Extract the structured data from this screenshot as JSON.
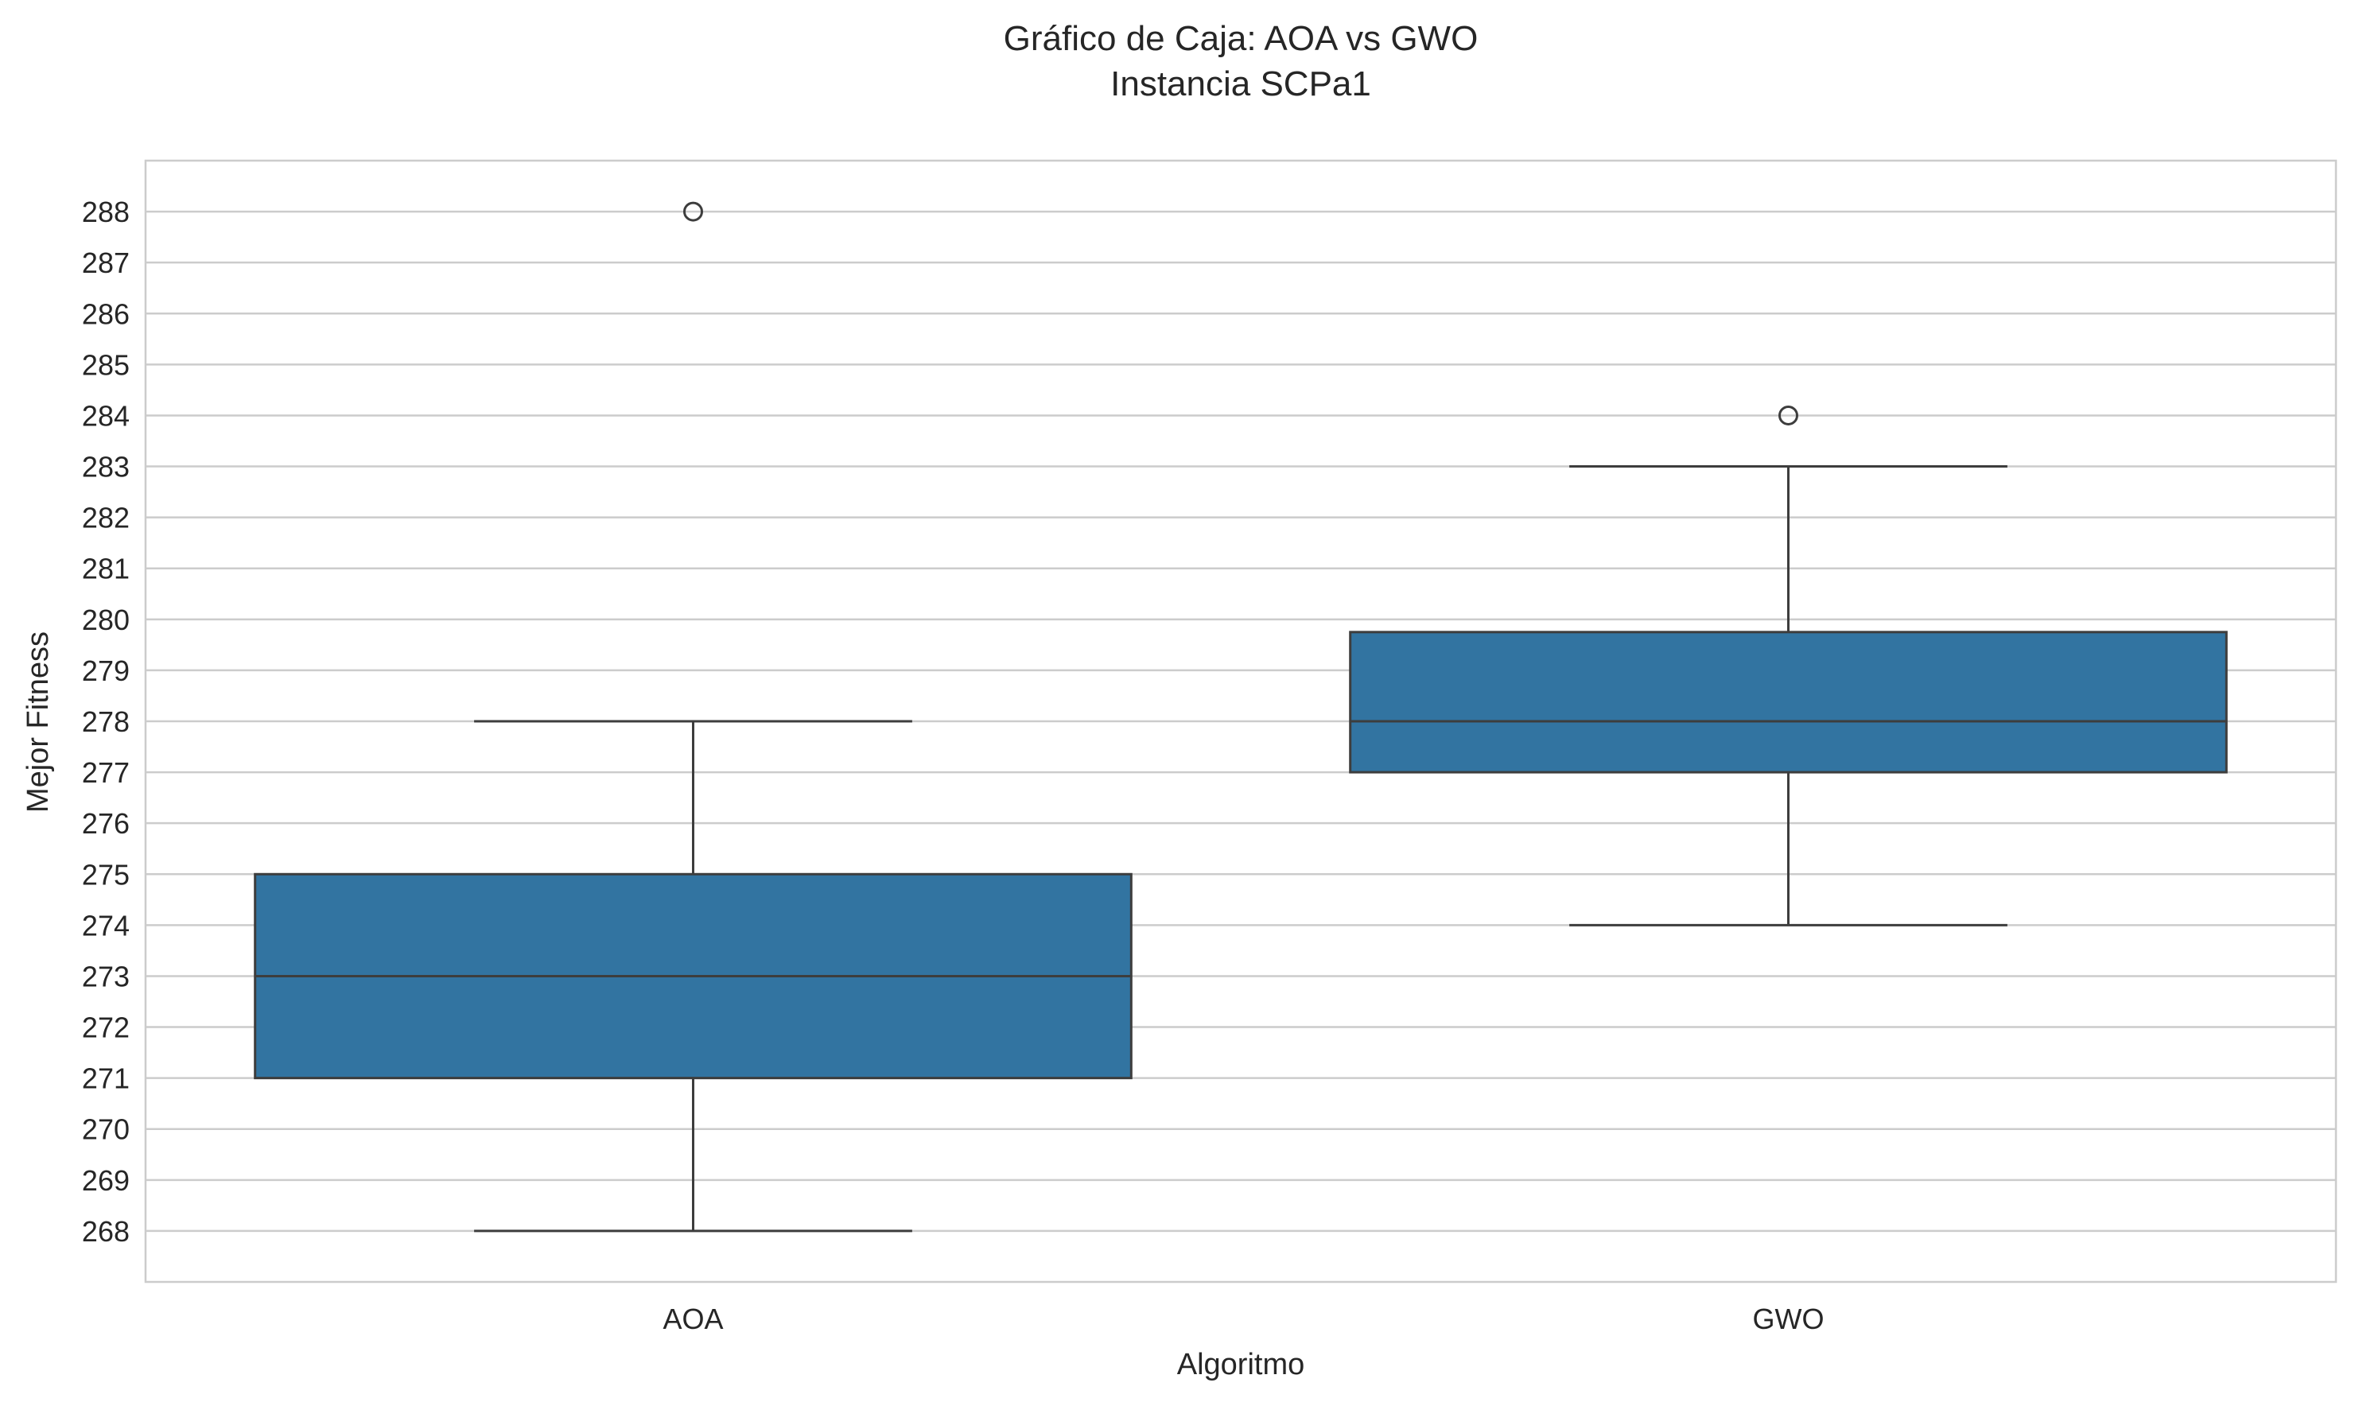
{
  "chart_data": {
    "type": "box",
    "title": "Gráfico de Caja: AOA vs GWO",
    "subtitle": "Instancia SCPa1",
    "xlabel": "Algoritmo",
    "ylabel": "Mejor Fitness",
    "categories": [
      "AOA",
      "GWO"
    ],
    "ylim": [
      267,
      289
    ],
    "yticks": [
      268,
      269,
      270,
      271,
      272,
      273,
      274,
      275,
      276,
      277,
      278,
      279,
      280,
      281,
      282,
      283,
      284,
      285,
      286,
      287,
      288
    ],
    "grid": true,
    "legend": "none",
    "boxes": [
      {
        "category": "AOA",
        "whisker_low": 268,
        "q1": 271,
        "median": 273,
        "q3": 275,
        "whisker_high": 278,
        "outliers": [
          288
        ]
      },
      {
        "category": "GWO",
        "whisker_low": 274,
        "q1": 277,
        "median": 278,
        "q3": 279.75,
        "whisker_high": 283,
        "outliers": [
          284
        ]
      }
    ],
    "colors": {
      "box_fill": "#3274a1",
      "line": "#3d3d3d",
      "grid": "#cccccc",
      "frame": "#cccccc"
    }
  }
}
